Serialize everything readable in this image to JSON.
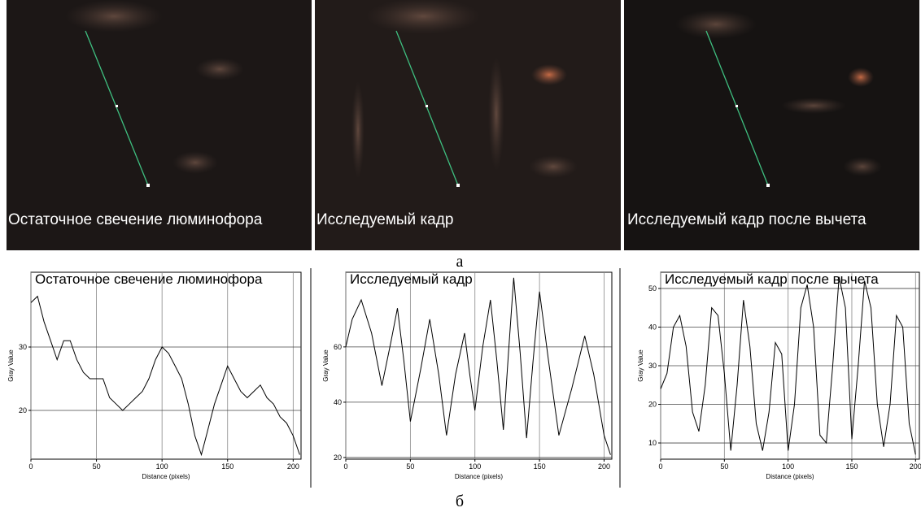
{
  "images": [
    {
      "label": "Остаточное свечение люминофора"
    },
    {
      "label": "Исследуемый кадр"
    },
    {
      "label": "Исследуемый кадр после вычета"
    }
  ],
  "image_caption": "а",
  "charts_caption": "б",
  "chart_data": [
    {
      "type": "line",
      "title": "Остаточное свечение люминофора",
      "x_label": "Distance (pixels)",
      "y_label": "Gray Value",
      "color": "#000000",
      "grid": true,
      "x": [
        0,
        5,
        10,
        15,
        20,
        25,
        30,
        35,
        40,
        45,
        50,
        55,
        60,
        65,
        70,
        75,
        80,
        85,
        90,
        95,
        100,
        105,
        110,
        115,
        120,
        125,
        130,
        135,
        140,
        145,
        150,
        155,
        160,
        165,
        170,
        175,
        180,
        185,
        190,
        195,
        200,
        205
      ],
      "values": [
        37,
        38,
        34,
        31,
        28,
        31,
        31,
        28,
        26,
        25,
        25,
        25,
        22,
        21,
        20,
        21,
        22,
        23,
        25,
        28,
        30,
        29,
        27,
        25,
        21,
        16,
        13,
        17,
        21,
        24,
        27,
        25,
        23,
        22,
        23,
        24,
        22,
        21,
        19,
        18,
        16,
        13
      ],
      "xlim": [
        0,
        206
      ],
      "ylim": [
        12.3,
        41.8
      ],
      "xticks": [
        0,
        50,
        100,
        150,
        200
      ],
      "yticks": [
        20,
        30
      ]
    },
    {
      "type": "line",
      "title": "Исследуемый кадр",
      "x_label": "Distance (pixels)",
      "y_label": "Gray Value",
      "color": "#000000",
      "grid": true,
      "x": [
        0,
        5,
        12,
        20,
        28,
        35,
        40,
        45,
        50,
        58,
        65,
        72,
        78,
        85,
        92,
        96,
        100,
        106,
        112,
        117,
        122,
        126,
        130,
        135,
        140,
        145,
        150,
        157,
        165,
        175,
        185,
        192,
        200,
        205
      ],
      "values": [
        60,
        70,
        77,
        65,
        46,
        62,
        74,
        55,
        33,
        52,
        70,
        50,
        28,
        50,
        65,
        50,
        37,
        60,
        77,
        55,
        30,
        58,
        85,
        58,
        27,
        55,
        80,
        55,
        28,
        45,
        64,
        50,
        28,
        21
      ],
      "xlim": [
        0,
        206
      ],
      "ylim": [
        19.4,
        87
      ],
      "xticks": [
        0,
        50,
        100,
        150,
        200
      ],
      "yticks": [
        20,
        40,
        60
      ]
    },
    {
      "type": "line",
      "title": "Исследуемый кадр после вычета",
      "x_label": "Distance (pixels)",
      "y_label": "Gray Value",
      "color": "#000000",
      "grid": true,
      "x": [
        0,
        5,
        10,
        15,
        20,
        25,
        30,
        35,
        40,
        45,
        50,
        55,
        60,
        65,
        70,
        75,
        80,
        85,
        90,
        95,
        100,
        105,
        110,
        115,
        120,
        125,
        130,
        135,
        140,
        145,
        150,
        155,
        160,
        165,
        170,
        175,
        180,
        185,
        190,
        195,
        200
      ],
      "values": [
        24,
        28,
        40,
        43,
        35,
        18,
        13,
        25,
        45,
        43,
        28,
        8,
        25,
        47,
        35,
        15,
        8,
        18,
        36,
        33,
        8,
        20,
        45,
        51,
        40,
        12,
        10,
        30,
        53,
        45,
        11,
        30,
        52,
        45,
        20,
        9,
        20,
        43,
        40,
        15,
        7
      ],
      "xlim": [
        0,
        203
      ],
      "ylim": [
        5.8,
        54.2
      ],
      "xticks": [
        0,
        50,
        100,
        150,
        200
      ],
      "yticks": [
        10,
        20,
        30,
        40,
        50
      ]
    }
  ]
}
